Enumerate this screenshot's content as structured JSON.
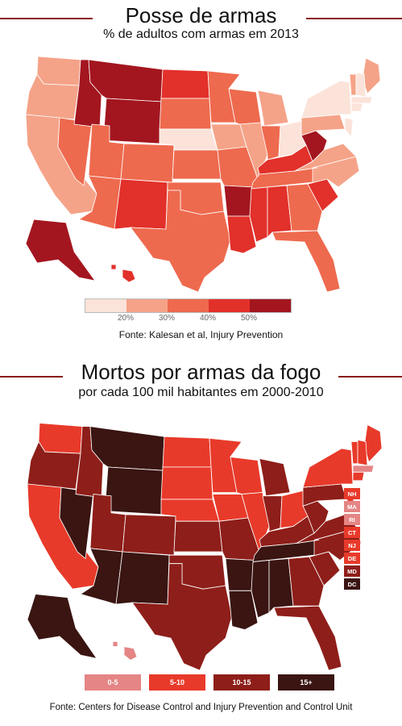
{
  "section1": {
    "title": "Posse de armas",
    "subtitle": "% de adultos com armas em 2013",
    "source": "Fonte: Kalesan et al, Injury Prevention",
    "legend_ticks": [
      "20%",
      "30%",
      "40%",
      "50%"
    ],
    "colors": [
      "#fbe3d9",
      "#f5a388",
      "#ee6a4e",
      "#e2302a",
      "#a3161f"
    ],
    "state_levels": {
      "WA": 1,
      "OR": 1,
      "CA": 1,
      "NV": 2,
      "ID": 4,
      "MT": 4,
      "WY": 4,
      "UT": 2,
      "AZ": 2,
      "CO": 2,
      "NM": 3,
      "ND": 3,
      "SD": 2,
      "NE": 0,
      "KS": 2,
      "OK": 2,
      "TX": 2,
      "MN": 2,
      "IA": 1,
      "MO": 2,
      "AR": 4,
      "LA": 3,
      "WI": 2,
      "IL": 1,
      "MI": 1,
      "IN": 2,
      "OH": 0,
      "KY": 3,
      "TN": 2,
      "MS": 3,
      "AL": 3,
      "GA": 2,
      "FL": 2,
      "SC": 3,
      "NC": 1,
      "VA": 1,
      "WV": 4,
      "PA": 1,
      "NY": 0,
      "NJ": 0,
      "ME": 1,
      "VT": 1,
      "NH": 0,
      "MA": 0,
      "CT": 0,
      "AK": 4,
      "HI": 3
    }
  },
  "section2": {
    "title": "Mortos por armas da fogo",
    "subtitle": "por cada 100 mil habitantes em 2000-2010",
    "source": "Fonte: Centers for Disease Control and Injury Prevention and Control Unit",
    "legend_labels": [
      "0-5",
      "5-10",
      "10-15",
      "15+"
    ],
    "colors": [
      "#e58585",
      "#e83a2a",
      "#8e1e19",
      "#3a1512"
    ],
    "small_states": [
      {
        "abbr": "NH",
        "level": 1
      },
      {
        "abbr": "MA",
        "level": 0
      },
      {
        "abbr": "RI",
        "level": 0
      },
      {
        "abbr": "CT",
        "level": 1
      },
      {
        "abbr": "NJ",
        "level": 1
      },
      {
        "abbr": "DE",
        "level": 1
      },
      {
        "abbr": "MD",
        "level": 2
      },
      {
        "abbr": "DC",
        "level": 3
      }
    ],
    "state_levels": {
      "WA": 1,
      "OR": 2,
      "CA": 1,
      "NV": 3,
      "ID": 2,
      "MT": 3,
      "WY": 3,
      "UT": 2,
      "AZ": 3,
      "CO": 2,
      "NM": 3,
      "ND": 1,
      "SD": 1,
      "NE": 1,
      "KS": 2,
      "OK": 2,
      "TX": 2,
      "MN": 1,
      "IA": 1,
      "MO": 2,
      "AR": 3,
      "LA": 3,
      "WI": 1,
      "IL": 1,
      "MI": 2,
      "IN": 2,
      "OH": 1,
      "KY": 2,
      "TN": 3,
      "MS": 3,
      "AL": 3,
      "GA": 2,
      "FL": 2,
      "SC": 2,
      "NC": 2,
      "VA": 2,
      "WV": 2,
      "PA": 2,
      "NY": 1,
      "NJ": 1,
      "ME": 1,
      "VT": 1,
      "NH": 1,
      "MA": 0,
      "CT": 1,
      "AK": 3,
      "HI": 0
    }
  }
}
